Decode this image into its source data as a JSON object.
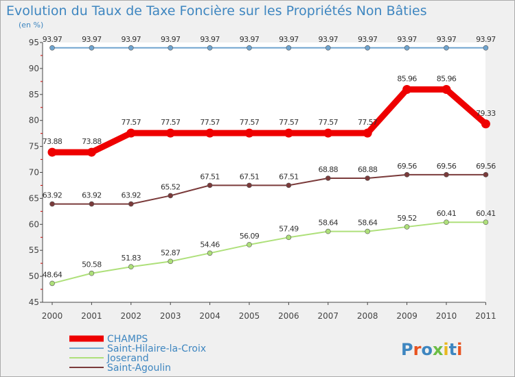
{
  "chart_data": {
    "type": "line",
    "title": "Evolution du Taux de Taxe Foncière sur les Propriétés Non Bâties",
    "ylabel": "(en %)",
    "x": [
      "2000",
      "2001",
      "2002",
      "2003",
      "2004",
      "2005",
      "2006",
      "2007",
      "2008",
      "2009",
      "2010",
      "2011"
    ],
    "ylim": [
      45,
      95
    ],
    "yticks": [
      45,
      50,
      55,
      60,
      65,
      70,
      75,
      80,
      85,
      90,
      95
    ],
    "grid": false,
    "legend_position": "bottom-left",
    "series": [
      {
        "name": "CHAMPS",
        "color": "#ee0000",
        "values": [
          73.88,
          73.88,
          77.57,
          77.57,
          77.57,
          77.57,
          77.57,
          77.57,
          77.57,
          85.96,
          85.96,
          79.33
        ]
      },
      {
        "name": "Saint-Hilaire-la-Croix",
        "color": "#6fa4cf",
        "values": [
          93.97,
          93.97,
          93.97,
          93.97,
          93.97,
          93.97,
          93.97,
          93.97,
          93.97,
          93.97,
          93.97,
          93.97
        ]
      },
      {
        "name": "Joserand",
        "color": "#aee07a",
        "values": [
          48.64,
          50.58,
          51.83,
          52.87,
          54.46,
          56.09,
          57.49,
          58.64,
          58.64,
          59.52,
          60.41,
          60.41
        ]
      },
      {
        "name": "Saint-Agoulin",
        "color": "#7a3a3a",
        "values": [
          63.92,
          63.92,
          63.92,
          65.52,
          67.51,
          67.51,
          67.51,
          68.88,
          68.88,
          69.56,
          69.56,
          69.56
        ]
      }
    ]
  },
  "logo": {
    "text": "Proxiti"
  }
}
